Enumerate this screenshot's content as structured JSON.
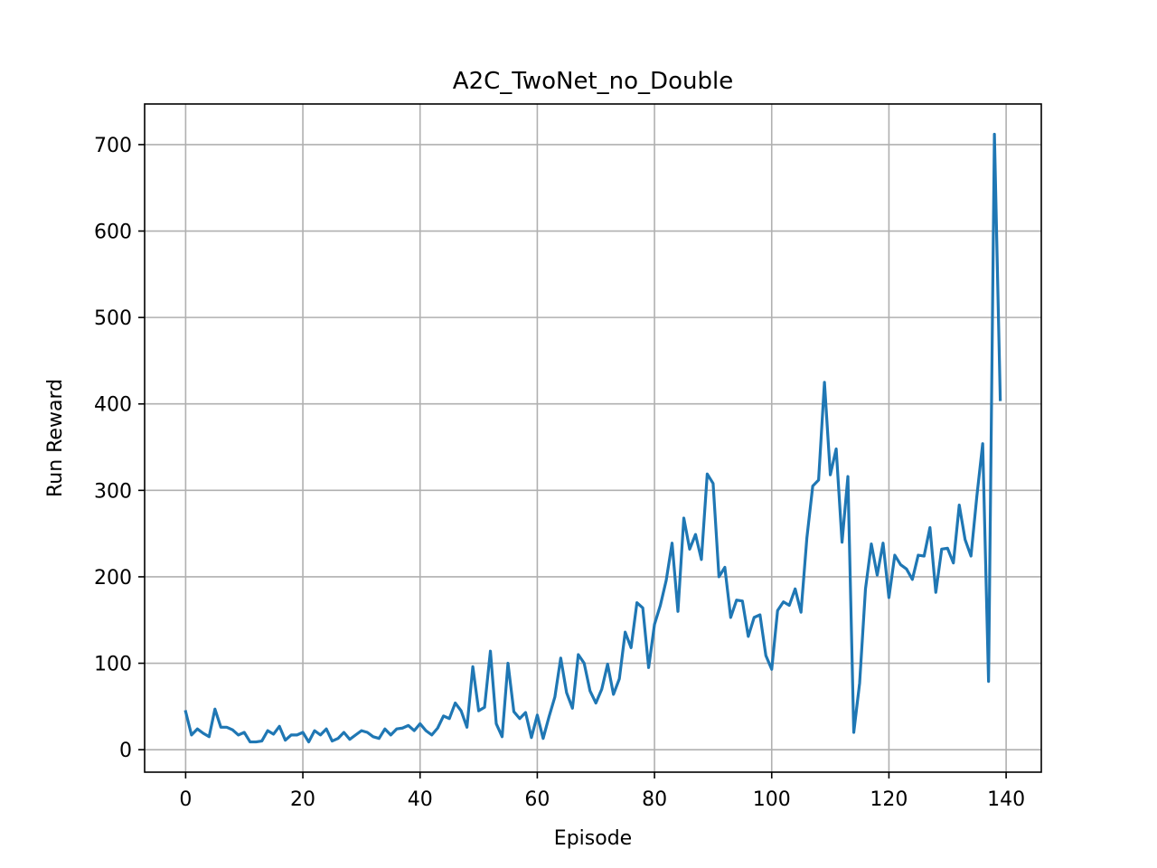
{
  "chart_data": {
    "type": "line",
    "title": "A2C_TwoNet_no_Double",
    "xlabel": "Episode",
    "ylabel": "Run Reward",
    "xlim": [
      -7,
      146
    ],
    "ylim": [
      -26,
      747
    ],
    "xticks": [
      0,
      20,
      40,
      60,
      80,
      100,
      120,
      140
    ],
    "yticks": [
      0,
      100,
      200,
      300,
      400,
      500,
      600,
      700
    ],
    "grid": true,
    "legend": "none",
    "series": [
      {
        "color": "#1f77b4",
        "x": [
          0,
          1,
          2,
          3,
          4,
          5,
          6,
          7,
          8,
          9,
          10,
          11,
          12,
          13,
          14,
          15,
          16,
          17,
          18,
          19,
          20,
          21,
          22,
          23,
          24,
          25,
          26,
          27,
          28,
          29,
          30,
          31,
          32,
          33,
          34,
          35,
          36,
          37,
          38,
          39,
          40,
          41,
          42,
          43,
          44,
          45,
          46,
          47,
          48,
          49,
          50,
          51,
          52,
          53,
          54,
          55,
          56,
          57,
          58,
          59,
          60,
          61,
          62,
          63,
          64,
          65,
          66,
          67,
          68,
          69,
          70,
          71,
          72,
          73,
          74,
          75,
          76,
          77,
          78,
          79,
          80,
          81,
          82,
          83,
          84,
          85,
          86,
          87,
          88,
          89,
          90,
          91,
          92,
          93,
          94,
          95,
          96,
          97,
          98,
          99,
          100,
          101,
          102,
          103,
          104,
          105,
          106,
          107,
          108,
          109,
          110,
          111,
          112,
          113,
          114,
          115,
          116,
          117,
          118,
          119,
          120,
          121,
          122,
          123,
          124,
          125,
          126,
          127,
          128,
          129,
          130,
          131,
          132,
          133,
          134,
          135,
          136,
          137,
          138,
          139
        ],
        "y": [
          44,
          17,
          24,
          19,
          15,
          47,
          26,
          26,
          23,
          17,
          20,
          9,
          9,
          10,
          22,
          18,
          27,
          11,
          17,
          17,
          20,
          9,
          22,
          17,
          24,
          10,
          13,
          20,
          12,
          17,
          22,
          20,
          15,
          13,
          24,
          17,
          24,
          25,
          28,
          22,
          30,
          22,
          17,
          25,
          39,
          36,
          54,
          45,
          26,
          96,
          45,
          49,
          114,
          30,
          15,
          100,
          44,
          36,
          43,
          14,
          40,
          13,
          38,
          61,
          106,
          66,
          48,
          110,
          100,
          68,
          54,
          70,
          99,
          64,
          82,
          136,
          118,
          170,
          164,
          95,
          145,
          167,
          196,
          239,
          160,
          268,
          232,
          249,
          220,
          319,
          308,
          200,
          211,
          153,
          173,
          172,
          131,
          153,
          156,
          109,
          93,
          161,
          171,
          167,
          186,
          159,
          245,
          305,
          312,
          425,
          318,
          348,
          240,
          316,
          20,
          77,
          186,
          238,
          202,
          239,
          176,
          225,
          214,
          209,
          197,
          225,
          224,
          257,
          182,
          232,
          233,
          216,
          283,
          243,
          224,
          293,
          354,
          79,
          712,
          405
        ]
      }
    ]
  }
}
